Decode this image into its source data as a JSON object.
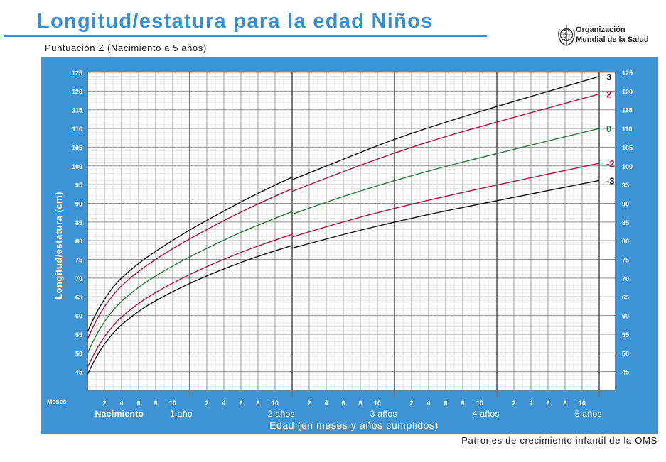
{
  "header": {
    "title": "Longitud/estatura para la edad Niños",
    "subtitle": "Puntuación Z (Nacimiento a 5 años)",
    "org_line1": "Organización",
    "org_line2": "Mundial de la Salud",
    "logo_icon": "who-emblem-icon"
  },
  "footer": {
    "text": "Patrones de crecimiento infantil de la OMS"
  },
  "colors": {
    "brand_blue": "#3d93d4",
    "title_blue": "#3a8fd0",
    "z3": "#111111",
    "z2": "#b0173e",
    "z0": "#2a7a3a",
    "zm2": "#b0173e",
    "zm3": "#111111"
  },
  "chart_data": {
    "type": "line",
    "title": "Longitud/estatura para la edad Niños",
    "subtitle": "Puntuación Z (Nacimiento a 5 años)",
    "xlabel": "Edad (en meses y años cumplidos)",
    "ylabel": "Longitud/estatura (cm)",
    "xlim": [
      0,
      60
    ],
    "ylim": [
      40,
      125
    ],
    "grid": true,
    "x_unit_label": "Meses",
    "x_month_ticks": [
      "2",
      "4",
      "6",
      "8",
      "10"
    ],
    "x_year_labels": [
      "Nacimiento",
      "1 año",
      "2 años",
      "3 años",
      "4 años",
      "5 años"
    ],
    "y_ticks": [
      45,
      50,
      55,
      60,
      65,
      70,
      75,
      80,
      85,
      90,
      95,
      100,
      105,
      110,
      115,
      120,
      125
    ],
    "x": [
      0,
      1,
      2,
      3,
      4,
      6,
      8,
      10,
      12,
      15,
      18,
      21,
      24,
      24,
      30,
      36,
      42,
      48,
      54,
      60
    ],
    "series": [
      {
        "name": "3",
        "label": "3",
        "color": "#111111",
        "values": [
          55.6,
          60.6,
          64.4,
          67.6,
          70.1,
          74.0,
          77.2,
          80.1,
          82.9,
          86.7,
          90.4,
          93.8,
          97.0,
          96.3,
          101.8,
          107.2,
          111.7,
          115.9,
          119.9,
          123.9
        ]
      },
      {
        "name": "2",
        "label": "2",
        "color": "#b0173e",
        "values": [
          53.7,
          58.6,
          62.4,
          65.5,
          68.0,
          71.9,
          75.0,
          77.9,
          80.5,
          84.2,
          87.7,
          90.9,
          93.9,
          93.2,
          98.5,
          103.5,
          107.9,
          111.7,
          115.5,
          119.2
        ]
      },
      {
        "name": "0",
        "label": "0",
        "color": "#2a7a3a",
        "values": [
          49.9,
          54.7,
          58.4,
          61.4,
          63.9,
          67.6,
          70.6,
          73.3,
          75.7,
          79.1,
          82.3,
          85.1,
          87.8,
          87.1,
          91.9,
          96.1,
          99.9,
          103.3,
          106.7,
          110.0
        ]
      },
      {
        "name": "-2",
        "label": "-2",
        "color": "#b0173e",
        "values": [
          46.1,
          50.8,
          54.4,
          57.3,
          59.7,
          63.3,
          66.2,
          68.7,
          71.0,
          74.1,
          76.9,
          79.4,
          81.7,
          81.0,
          85.1,
          88.7,
          91.9,
          94.9,
          97.8,
          100.7
        ]
      },
      {
        "name": "-3",
        "label": "-3",
        "color": "#111111",
        "values": [
          44.2,
          48.9,
          52.4,
          55.3,
          57.6,
          61.2,
          64.0,
          66.4,
          68.6,
          71.6,
          74.2,
          76.6,
          78.7,
          78.0,
          81.7,
          85.0,
          88.0,
          90.7,
          93.4,
          96.1
        ]
      }
    ]
  }
}
